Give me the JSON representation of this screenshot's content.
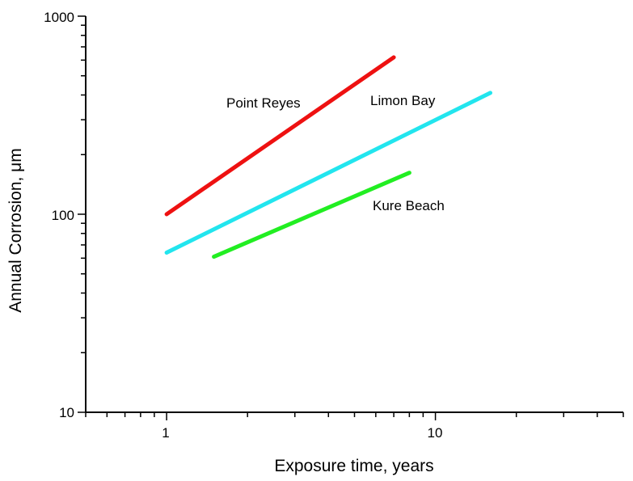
{
  "chart_data": {
    "type": "line",
    "title": "",
    "xlabel": "Exposure time, years",
    "ylabel": "Annual Corrosion, μm",
    "x_scale": "log",
    "y_scale": "log",
    "xlim": [
      0.5,
      50
    ],
    "ylim": [
      10,
      1000
    ],
    "x_major_ticks": [
      1,
      10
    ],
    "y_major_ticks": [
      10,
      100,
      1000
    ],
    "x_tick_labels": [
      "1",
      "10"
    ],
    "y_tick_labels": [
      "10",
      "100",
      "1000"
    ],
    "grid": false,
    "legend": "none (series labeled inline)",
    "series": [
      {
        "name": "Point Reyes",
        "color": "#ee1111",
        "x": [
          1,
          7
        ],
        "y": [
          100,
          620
        ]
      },
      {
        "name": "Limon Bay",
        "color": "#22e5ee",
        "x": [
          1,
          16
        ],
        "y": [
          64,
          410
        ]
      },
      {
        "name": "Kure Beach",
        "color": "#22ee22",
        "x": [
          1.5,
          8
        ],
        "y": [
          61,
          162
        ]
      }
    ]
  }
}
